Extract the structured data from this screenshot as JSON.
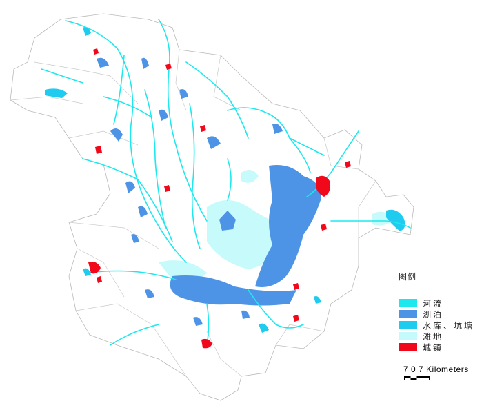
{
  "legend": {
    "title": "图例",
    "items": [
      {
        "label": "河流",
        "color": "#1de8ee"
      },
      {
        "label": "湖泊",
        "color": "#4e94e6"
      },
      {
        "label": "水库、坑塘",
        "color": "#1fcbee"
      },
      {
        "label": "滩地",
        "color": "#c4fafb"
      },
      {
        "label": "城镇",
        "color": "#f2081b"
      }
    ]
  },
  "scale": {
    "label": "7  0  7  Kilometers"
  },
  "colors": {
    "boundary": "#b9b9b9",
    "river": "#1de8ee",
    "lake": "#4e94e6",
    "reservoir": "#1fcbee",
    "floodplain": "#c4fafb",
    "town": "#f2081b"
  }
}
